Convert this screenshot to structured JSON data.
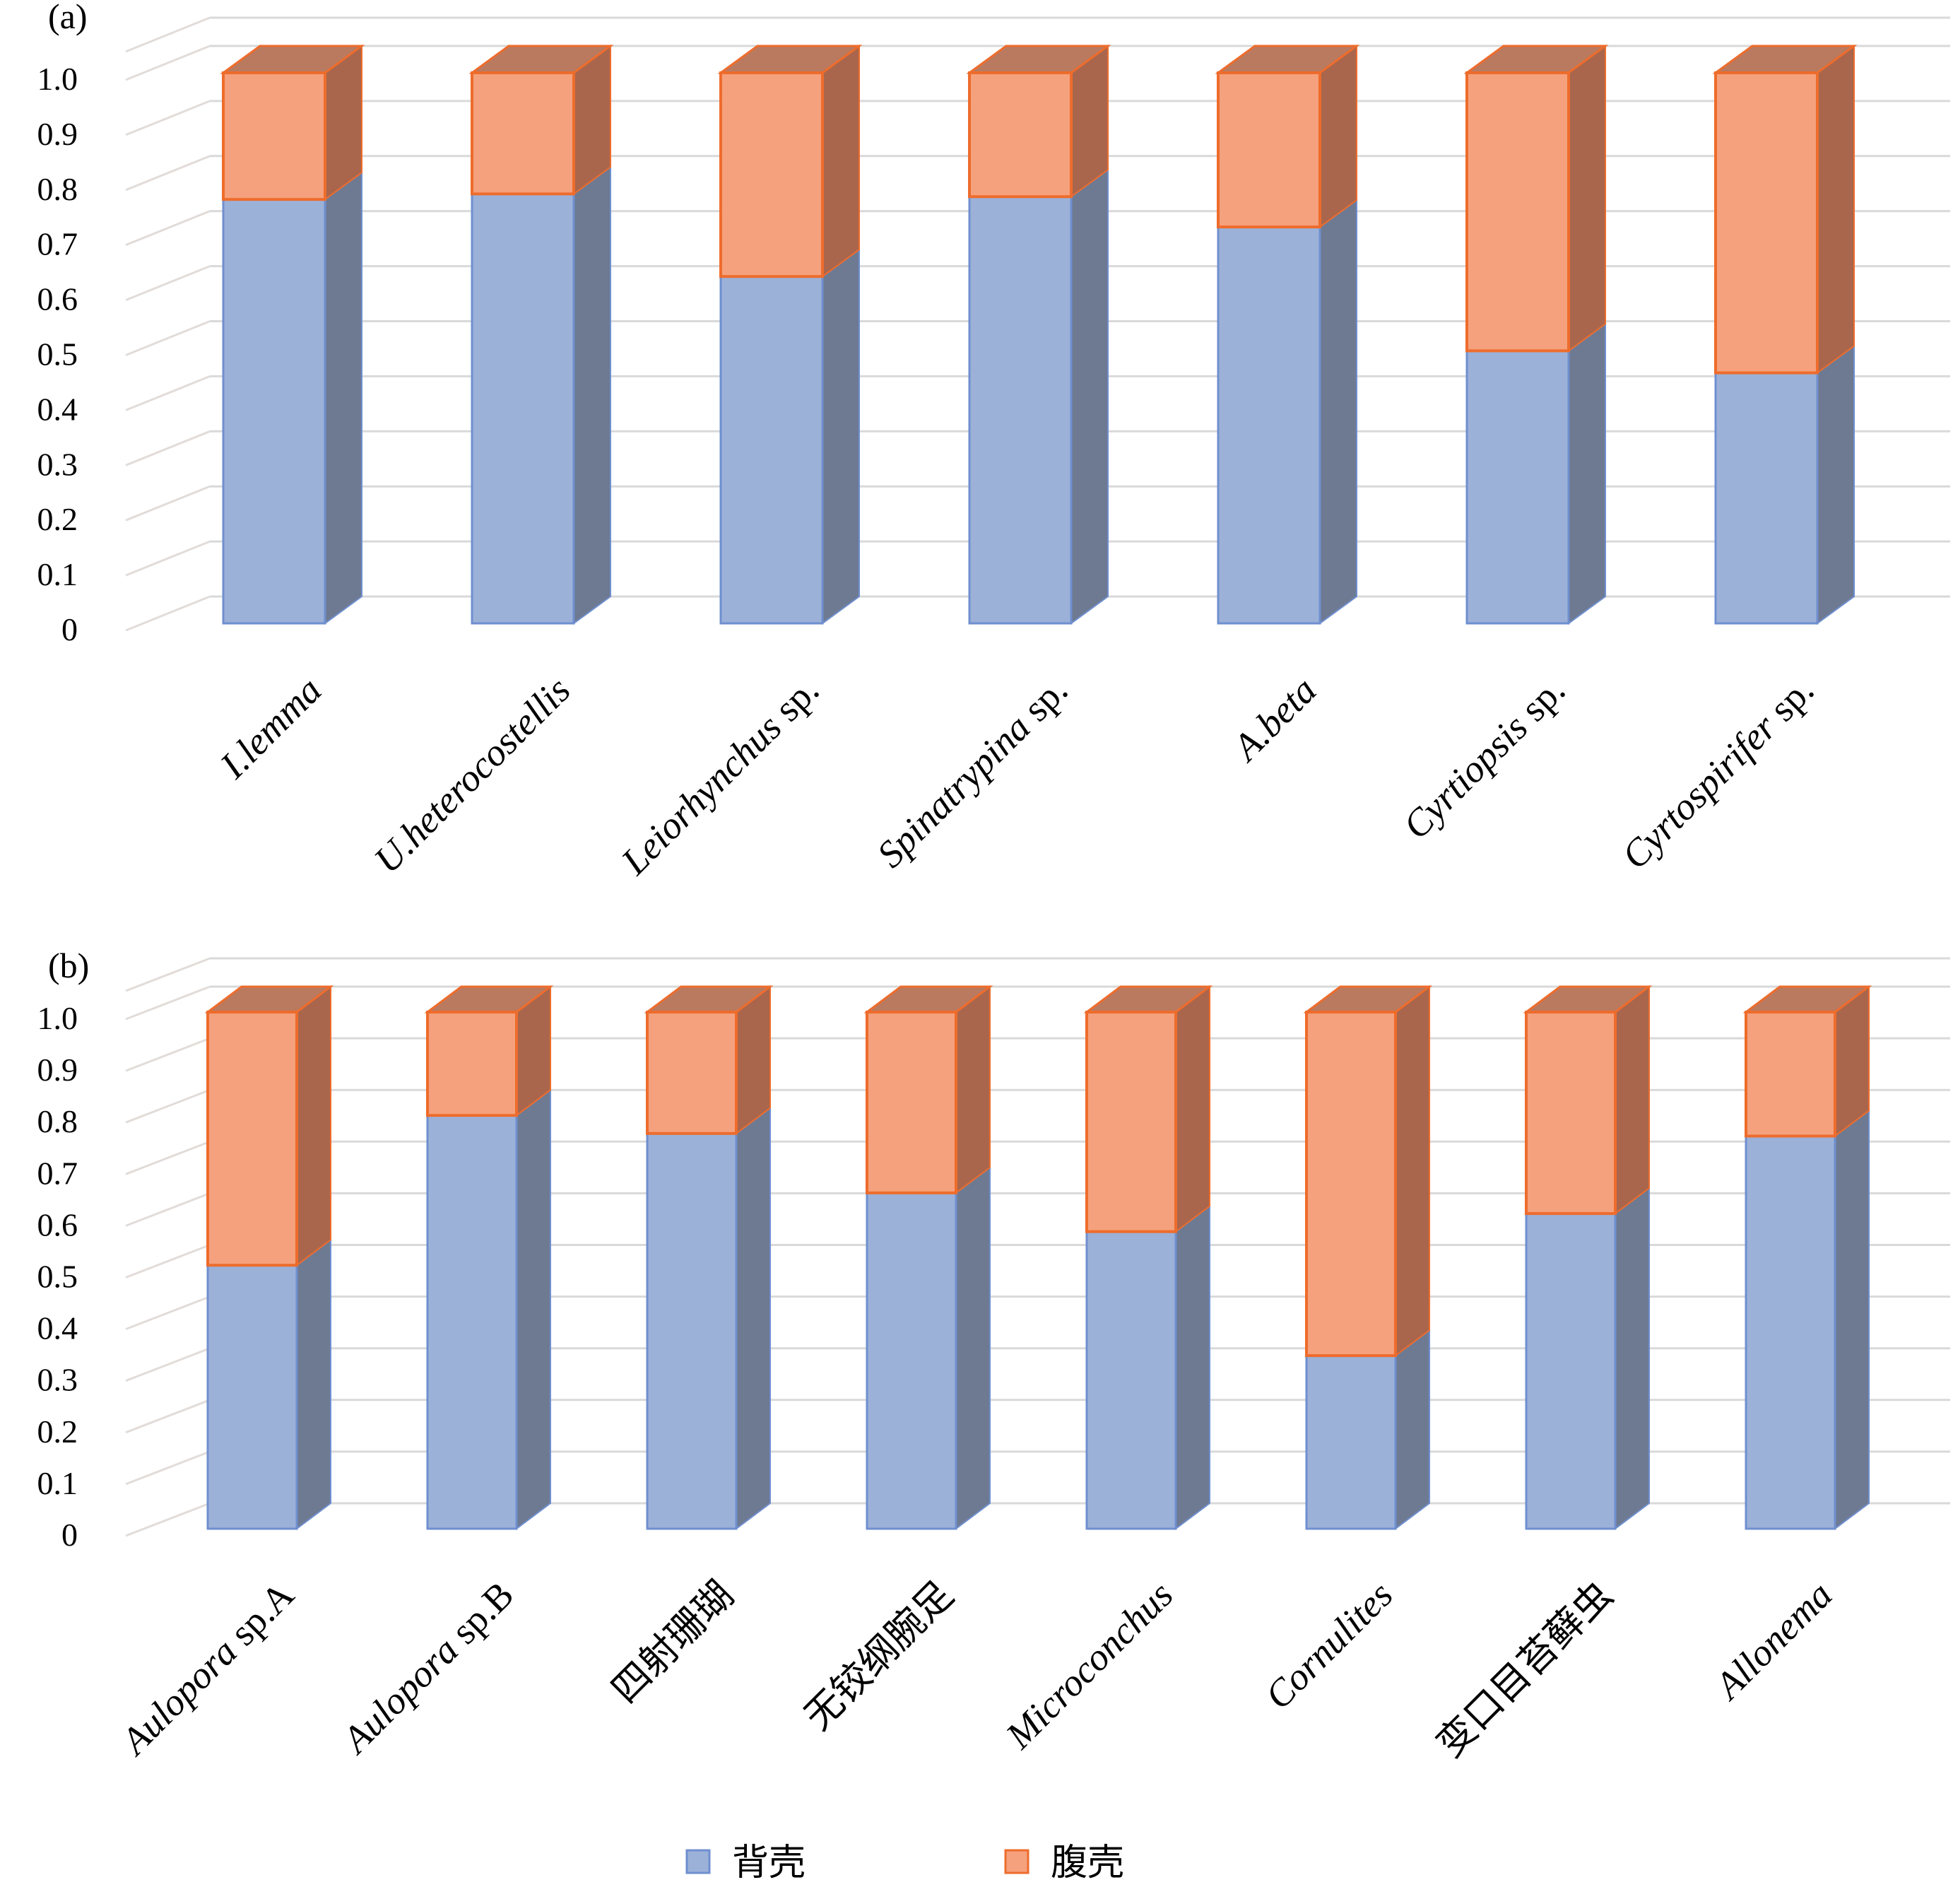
{
  "colors": {
    "dorsal_front": "#9cb1d8",
    "dorsal_side": "#6e7a92",
    "dorsal_edge": "#6f8fcf",
    "ventral_front": "#f5a17d",
    "ventral_side": "#a9664c",
    "ventral_top": "#b97a60",
    "ventral_edge": "#ee6c2c"
  },
  "legend": [
    {
      "label": "背壳",
      "color": "#9cb1d8",
      "border": "#6f8fcf"
    },
    {
      "label": "腹壳",
      "color": "#f5a17d",
      "border": "#ee6c2c"
    }
  ],
  "chart_data": [
    {
      "type": "bar",
      "stacked": true,
      "panel_label": "(a)",
      "categories": [
        {
          "pre": "I.lemma",
          "post": ""
        },
        {
          "pre": "U.heterocostellis",
          "post": ""
        },
        {
          "pre": "Leiorhynchus",
          "post": " sp."
        },
        {
          "pre": "Spinatrypina",
          "post": " sp."
        },
        {
          "pre": "A.beta",
          "post": ""
        },
        {
          "pre": "Cyrtiopsis",
          "post": " sp."
        },
        {
          "pre": "Cyrtospirifer",
          "post": " sp."
        }
      ],
      "series": [
        {
          "name": "背壳",
          "values": [
            0.77,
            0.78,
            0.63,
            0.775,
            0.72,
            0.495,
            0.455
          ]
        },
        {
          "name": "腹壳",
          "values": [
            0.23,
            0.22,
            0.37,
            0.225,
            0.28,
            0.505,
            0.545
          ]
        }
      ],
      "ylim": [
        0,
        1.0
      ],
      "yticks": [
        "0",
        "0.1",
        "0.2",
        "0.3",
        "0.4",
        "0.5",
        "0.6",
        "0.7",
        "0.8",
        "0.9",
        "1.0"
      ],
      "grid": true
    },
    {
      "type": "bar",
      "stacked": true,
      "panel_label": "(b)",
      "categories": [
        {
          "pre": "Aulopora",
          "post": " sp.A"
        },
        {
          "pre": "Aulopora",
          "post": " sp.B"
        },
        {
          "pre": "",
          "post": "四射珊瑚"
        },
        {
          "pre": "",
          "post": "无铰纲腕足"
        },
        {
          "pre": "Microconchus",
          "post": ""
        },
        {
          "pre": "Cornulites",
          "post": ""
        },
        {
          "pre": "",
          "post": "变口目苔藓虫"
        },
        {
          "pre": "Allonema",
          "post": ""
        }
      ],
      "series": [
        {
          "name": "背壳",
          "values": [
            0.51,
            0.8,
            0.765,
            0.65,
            0.575,
            0.335,
            0.61,
            0.76
          ]
        },
        {
          "name": "腹壳",
          "values": [
            0.49,
            0.2,
            0.235,
            0.35,
            0.425,
            0.665,
            0.39,
            0.24
          ]
        }
      ],
      "ylim": [
        0,
        1.0
      ],
      "yticks": [
        "0",
        "0.1",
        "0.2",
        "0.3",
        "0.4",
        "0.5",
        "0.6",
        "0.7",
        "0.8",
        "0.9",
        "1.0"
      ],
      "grid": true
    }
  ]
}
